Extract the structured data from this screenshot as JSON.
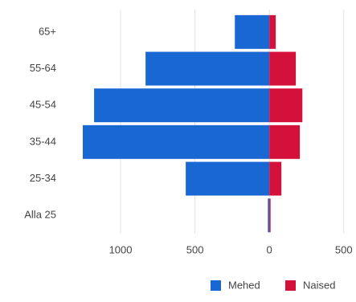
{
  "chart_data": {
    "type": "bar",
    "orientation": "horizontal",
    "categories": [
      "65+",
      "55-64",
      "45-54",
      "35-44",
      "25-34",
      "Alla 25"
    ],
    "series": [
      {
        "name": "Mehed",
        "color": "#1967d2",
        "values": [
          -232,
          -832,
          -1178,
          -1254,
          -562,
          -10
        ]
      },
      {
        "name": "Naised",
        "color": "#d4113a",
        "values": [
          43,
          178,
          222,
          205,
          81,
          4
        ]
      }
    ],
    "xlim": [
      -1300,
      550
    ],
    "xticks": [
      {
        "value": -1000,
        "label": "1000"
      },
      {
        "value": -500,
        "label": "500"
      },
      0,
      500
    ],
    "grid": true,
    "legend": "bottom-right"
  }
}
